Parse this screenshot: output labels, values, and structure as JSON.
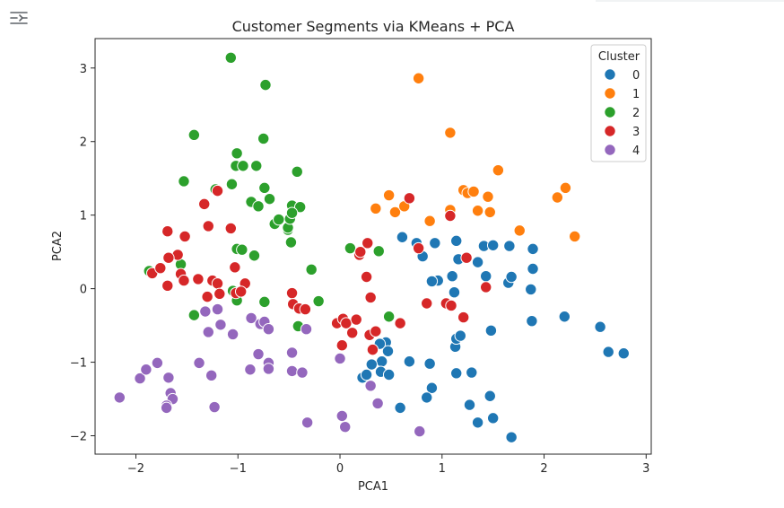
{
  "toolbar": {
    "icon": "output-settings-icon"
  },
  "chart_data": {
    "type": "scatter",
    "title": "Customer Segments via KMeans + PCA",
    "xlabel": "PCA1",
    "ylabel": "PCA2",
    "xlim": [
      -2.4,
      3.05
    ],
    "ylim": [
      -2.25,
      3.4
    ],
    "xticks": [
      -2,
      -1,
      0,
      1,
      2,
      3
    ],
    "yticks": [
      -2,
      -1,
      0,
      1,
      2,
      3
    ],
    "xtick_labels": [
      "−2",
      "−1",
      "0",
      "1",
      "2",
      "3"
    ],
    "ytick_labels": [
      "−2",
      "−1",
      "0",
      "1",
      "2",
      "3"
    ],
    "grid": false,
    "legend": {
      "title": "Cluster",
      "placement": "top-right"
    },
    "series": [
      {
        "name": "0",
        "color": "#1f77b4",
        "points": [
          [
            0.61,
            0.7
          ],
          [
            0.75,
            0.62
          ],
          [
            0.81,
            0.44
          ],
          [
            0.93,
            0.62
          ],
          [
            0.96,
            0.11
          ],
          [
            1.14,
            0.65
          ],
          [
            1.16,
            0.4
          ],
          [
            1.41,
            0.58
          ],
          [
            1.5,
            0.59
          ],
          [
            1.66,
            0.58
          ],
          [
            1.89,
            0.54
          ],
          [
            1.1,
            0.17
          ],
          [
            1.35,
            0.36
          ],
          [
            1.43,
            0.17
          ],
          [
            1.65,
            0.08
          ],
          [
            1.68,
            0.16
          ],
          [
            1.89,
            0.27
          ],
          [
            1.87,
            -0.01
          ],
          [
            1.12,
            -0.05
          ],
          [
            1.48,
            -0.57
          ],
          [
            1.88,
            -0.44
          ],
          [
            2.2,
            -0.38
          ],
          [
            2.55,
            -0.52
          ],
          [
            2.63,
            -0.86
          ],
          [
            2.78,
            -0.88
          ],
          [
            1.13,
            -0.79
          ],
          [
            1.14,
            -0.68
          ],
          [
            1.18,
            -0.64
          ],
          [
            1.14,
            -1.15
          ],
          [
            1.29,
            -1.14
          ],
          [
            0.88,
            -1.02
          ],
          [
            0.68,
            -0.99
          ],
          [
            0.45,
            -0.73
          ],
          [
            0.47,
            -0.85
          ],
          [
            0.39,
            -0.75
          ],
          [
            0.41,
            -0.99
          ],
          [
            0.31,
            -1.03
          ],
          [
            0.22,
            -1.21
          ],
          [
            0.26,
            -1.17
          ],
          [
            0.4,
            -1.13
          ],
          [
            0.48,
            -1.17
          ],
          [
            0.9,
            -1.35
          ],
          [
            0.85,
            -1.48
          ],
          [
            1.27,
            -1.58
          ],
          [
            1.47,
            -1.46
          ],
          [
            1.35,
            -1.82
          ],
          [
            1.5,
            -1.76
          ],
          [
            1.68,
            -2.02
          ],
          [
            0.59,
            -1.62
          ],
          [
            0.9,
            0.1
          ]
        ]
      },
      {
        "name": "1",
        "color": "#ff7f0e",
        "points": [
          [
            0.77,
            2.86
          ],
          [
            1.08,
            2.12
          ],
          [
            1.55,
            1.61
          ],
          [
            0.48,
            1.27
          ],
          [
            0.35,
            1.09
          ],
          [
            0.54,
            1.04
          ],
          [
            0.63,
            1.12
          ],
          [
            0.88,
            0.92
          ],
          [
            1.08,
            1.07
          ],
          [
            1.21,
            1.34
          ],
          [
            1.25,
            1.3
          ],
          [
            1.31,
            1.32
          ],
          [
            1.35,
            1.06
          ],
          [
            1.45,
            1.25
          ],
          [
            1.47,
            1.04
          ],
          [
            1.76,
            0.79
          ],
          [
            2.13,
            1.24
          ],
          [
            2.21,
            1.37
          ],
          [
            2.3,
            0.71
          ]
        ]
      },
      {
        "name": "2",
        "color": "#2ca02c",
        "points": [
          [
            -1.07,
            3.14
          ],
          [
            -0.73,
            2.77
          ],
          [
            -1.43,
            2.09
          ],
          [
            -0.75,
            2.04
          ],
          [
            -1.01,
            1.84
          ],
          [
            -1.02,
            1.67
          ],
          [
            -0.95,
            1.67
          ],
          [
            -0.82,
            1.67
          ],
          [
            -1.53,
            1.46
          ],
          [
            -0.42,
            1.59
          ],
          [
            -1.22,
            1.35
          ],
          [
            -1.06,
            1.42
          ],
          [
            -0.74,
            1.37
          ],
          [
            -0.87,
            1.18
          ],
          [
            -0.8,
            1.12
          ],
          [
            -0.69,
            1.22
          ],
          [
            -0.47,
            1.13
          ],
          [
            -0.39,
            1.11
          ],
          [
            -0.64,
            0.88
          ],
          [
            -0.6,
            0.94
          ],
          [
            -0.51,
            0.8
          ],
          [
            -0.51,
            0.83
          ],
          [
            -0.49,
            0.95
          ],
          [
            -0.47,
            1.03
          ],
          [
            -0.48,
            0.63
          ],
          [
            -1.01,
            0.54
          ],
          [
            -0.96,
            0.53
          ],
          [
            -0.84,
            0.45
          ],
          [
            -1.56,
            0.33
          ],
          [
            -1.87,
            0.24
          ],
          [
            -0.28,
            0.26
          ],
          [
            0.1,
            0.55
          ],
          [
            0.38,
            0.51
          ],
          [
            -1.05,
            -0.03
          ],
          [
            -1.01,
            -0.16
          ],
          [
            -0.74,
            -0.18
          ],
          [
            -0.21,
            -0.17
          ],
          [
            -1.43,
            -0.36
          ],
          [
            -0.41,
            -0.51
          ],
          [
            0.48,
            -0.38
          ]
        ]
      },
      {
        "name": "3",
        "color": "#d62728",
        "points": [
          [
            -1.2,
            1.33
          ],
          [
            -1.33,
            1.15
          ],
          [
            -1.69,
            0.78
          ],
          [
            -1.52,
            0.71
          ],
          [
            -1.29,
            0.85
          ],
          [
            -1.07,
            0.82
          ],
          [
            -1.59,
            0.46
          ],
          [
            -1.68,
            0.42
          ],
          [
            -1.84,
            0.21
          ],
          [
            -1.76,
            0.28
          ],
          [
            -1.56,
            0.2
          ],
          [
            -1.53,
            0.11
          ],
          [
            -1.39,
            0.13
          ],
          [
            -1.25,
            0.11
          ],
          [
            -1.2,
            0.07
          ],
          [
            -1.03,
            0.29
          ],
          [
            -0.93,
            0.07
          ],
          [
            -1.69,
            0.04
          ],
          [
            -1.3,
            -0.11
          ],
          [
            -1.18,
            -0.07
          ],
          [
            -1.02,
            -0.06
          ],
          [
            -0.97,
            -0.04
          ],
          [
            -0.47,
            -0.06
          ],
          [
            -0.46,
            -0.21
          ],
          [
            -0.4,
            -0.27
          ],
          [
            -0.34,
            -0.28
          ],
          [
            -0.03,
            -0.47
          ],
          [
            0.03,
            -0.41
          ],
          [
            0.06,
            -0.47
          ],
          [
            0.02,
            -0.77
          ],
          [
            0.12,
            -0.6
          ],
          [
            0.16,
            -0.42
          ],
          [
            0.19,
            0.46
          ],
          [
            0.2,
            0.5
          ],
          [
            0.27,
            0.62
          ],
          [
            0.26,
            0.16
          ],
          [
            0.3,
            -0.12
          ],
          [
            0.29,
            -0.63
          ],
          [
            0.32,
            -0.83
          ],
          [
            0.35,
            -0.58
          ],
          [
            0.59,
            -0.47
          ],
          [
            0.68,
            1.23
          ],
          [
            0.77,
            0.55
          ],
          [
            0.85,
            -0.2
          ],
          [
            1.04,
            -0.2
          ],
          [
            1.09,
            -0.23
          ],
          [
            1.08,
            0.99
          ],
          [
            1.21,
            -0.39
          ],
          [
            1.24,
            0.42
          ],
          [
            1.43,
            0.02
          ]
        ]
      },
      {
        "name": "4",
        "color": "#9467bd",
        "points": [
          [
            -2.16,
            -1.48
          ],
          [
            -1.96,
            -1.22
          ],
          [
            -1.9,
            -1.1
          ],
          [
            -1.79,
            -1.01
          ],
          [
            -1.68,
            -1.21
          ],
          [
            -1.66,
            -1.42
          ],
          [
            -1.64,
            -1.5
          ],
          [
            -1.7,
            -1.59
          ],
          [
            -1.7,
            -1.62
          ],
          [
            -1.38,
            -1.01
          ],
          [
            -1.26,
            -1.18
          ],
          [
            -1.23,
            -1.61
          ],
          [
            -1.32,
            -0.31
          ],
          [
            -1.2,
            -0.28
          ],
          [
            -1.17,
            -0.49
          ],
          [
            -1.29,
            -0.59
          ],
          [
            -1.05,
            -0.62
          ],
          [
            -0.87,
            -0.4
          ],
          [
            -0.78,
            -0.48
          ],
          [
            -0.74,
            -0.45
          ],
          [
            -0.7,
            -0.55
          ],
          [
            -0.88,
            -1.1
          ],
          [
            -0.8,
            -0.89
          ],
          [
            -0.7,
            -1.01
          ],
          [
            -0.7,
            -1.09
          ],
          [
            -0.47,
            -0.87
          ],
          [
            -0.47,
            -1.12
          ],
          [
            -0.37,
            -1.14
          ],
          [
            -0.33,
            -0.55
          ],
          [
            -0.32,
            -1.82
          ],
          [
            0.0,
            -0.95
          ],
          [
            0.02,
            -1.73
          ],
          [
            0.05,
            -1.88
          ],
          [
            0.3,
            -1.32
          ],
          [
            0.37,
            -1.56
          ],
          [
            0.78,
            -1.94
          ]
        ]
      }
    ]
  }
}
